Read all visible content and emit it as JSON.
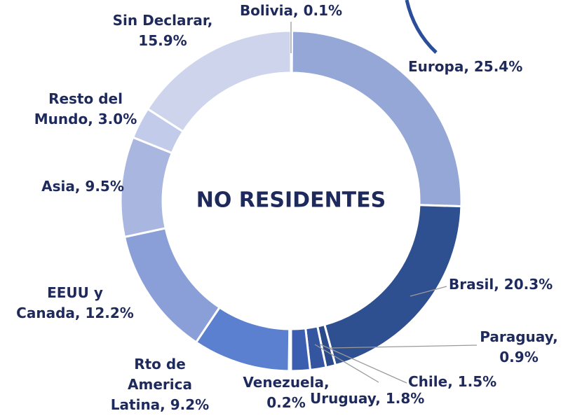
{
  "chart_data": {
    "type": "pie",
    "title": "NO RESIDENTES",
    "values": [
      0.1,
      25.4,
      20.3,
      0.9,
      1.5,
      1.8,
      0.2,
      9.2,
      12.2,
      9.5,
      3.0,
      15.9
    ],
    "value_labels": [
      "Bolivia, 0.1%",
      "Europa, 25.4%",
      "Brasil, 20.3%",
      "Paraguay,\n0.9%",
      "Chile, 1.5%",
      "Uruguay, 1.8%",
      "Venezuela,\n0.2%",
      "Rto de\nAmerica\nLatina, 9.2%",
      "EEUU y\nCanada, 12.2%",
      "Asia, 9.5%",
      "Resto del\nMundo, 3.0%",
      "Sin Declarar,\n15.9%"
    ],
    "colors": [
      "#c9d1ea",
      "#95a7d7",
      "#2f5090",
      "#2a4a8a",
      "#3456a1",
      "#3c5eb0",
      "#4a6cc1",
      "#5b80d0",
      "#8a9fd8",
      "#a8b6e0",
      "#c2cbe9",
      "#cdd4ec"
    ]
  }
}
